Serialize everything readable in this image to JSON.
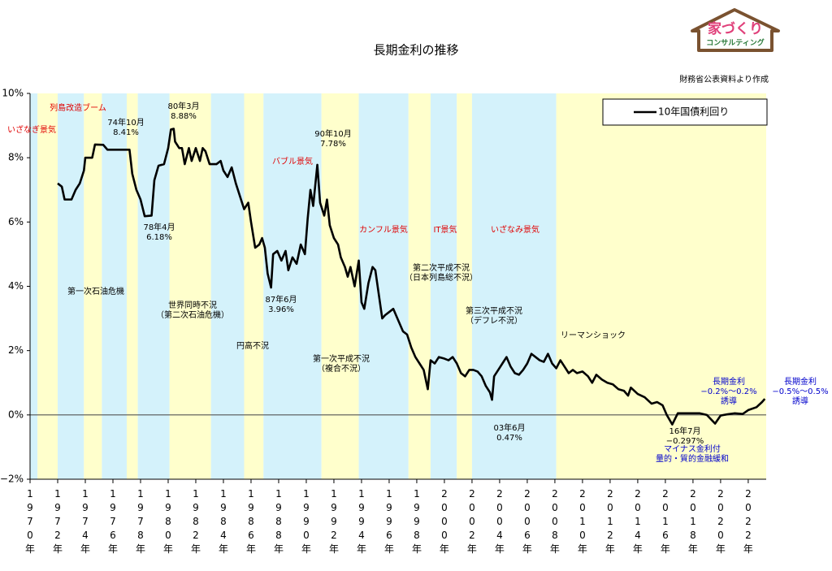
{
  "chart_data": {
    "type": "line",
    "title": "長期金利の推移",
    "source": "財務省公表資料より作成",
    "logo": {
      "main": "家づくり",
      "sub": "コンサルティング"
    },
    "legend": "upper right",
    "xlim": [
      1970,
      2023.3
    ],
    "ylim": [
      -2,
      10
    ],
    "yticks": [
      {
        "value": -2,
        "label": "−2%"
      },
      {
        "value": 0,
        "label": "0%"
      },
      {
        "value": 2,
        "label": "2%"
      },
      {
        "value": 4,
        "label": "4%"
      },
      {
        "value": 6,
        "label": "6%"
      },
      {
        "value": 8,
        "label": "8%"
      },
      {
        "value": 10,
        "label": "10%"
      }
    ],
    "xticks": [
      {
        "value": 1970,
        "label": "1970年"
      },
      {
        "value": 1972,
        "label": "1972年"
      },
      {
        "value": 1974,
        "label": "1974年"
      },
      {
        "value": 1976,
        "label": "1976年"
      },
      {
        "value": 1978,
        "label": "1978年"
      },
      {
        "value": 1980,
        "label": "1980年"
      },
      {
        "value": 1982,
        "label": "1982年"
      },
      {
        "value": 1984,
        "label": "1984年"
      },
      {
        "value": 1986,
        "label": "1986年"
      },
      {
        "value": 1988,
        "label": "1988年"
      },
      {
        "value": 1990,
        "label": "1990年"
      },
      {
        "value": 1992,
        "label": "1992年"
      },
      {
        "value": 1994,
        "label": "1994年"
      },
      {
        "value": 1996,
        "label": "1996年"
      },
      {
        "value": 1998,
        "label": "1998年"
      },
      {
        "value": 2000,
        "label": "2000年"
      },
      {
        "value": 2002,
        "label": "2002年"
      },
      {
        "value": 2004,
        "label": "2004年"
      },
      {
        "value": 2006,
        "label": "2006年"
      },
      {
        "value": 2008,
        "label": "2008年"
      },
      {
        "value": 2010,
        "label": "2010年"
      },
      {
        "value": 2012,
        "label": "2012年"
      },
      {
        "value": 2014,
        "label": "2014年"
      },
      {
        "value": 2016,
        "label": "2016年"
      },
      {
        "value": 2018,
        "label": "2018年"
      },
      {
        "value": 2020,
        "label": "2020年"
      },
      {
        "value": 2022,
        "label": "2022年"
      }
    ],
    "bands": [
      {
        "from": 1970,
        "to": 1970.54,
        "color": "#d4f2fb"
      },
      {
        "from": 1970.54,
        "to": 1972.0,
        "color": "#ffffcc"
      },
      {
        "from": 1972.0,
        "to": 1973.9,
        "color": "#d4f2fb"
      },
      {
        "from": 1973.9,
        "to": 1975.2,
        "color": "#ffffcc"
      },
      {
        "from": 1975.2,
        "to": 1977.0,
        "color": "#d4f2fb"
      },
      {
        "from": 1977.0,
        "to": 1977.8,
        "color": "#ffffcc"
      },
      {
        "from": 1977.8,
        "to": 1980.1,
        "color": "#d4f2fb"
      },
      {
        "from": 1980.1,
        "to": 1983.1,
        "color": "#ffffcc"
      },
      {
        "from": 1983.1,
        "to": 1985.5,
        "color": "#d4f2fb"
      },
      {
        "from": 1985.5,
        "to": 1986.9,
        "color": "#ffffcc"
      },
      {
        "from": 1986.9,
        "to": 1991.1,
        "color": "#d4f2fb"
      },
      {
        "from": 1991.1,
        "to": 1993.8,
        "color": "#ffffcc"
      },
      {
        "from": 1993.8,
        "to": 1997.4,
        "color": "#d4f2fb"
      },
      {
        "from": 1997.4,
        "to": 1999.0,
        "color": "#ffffcc"
      },
      {
        "from": 1999.0,
        "to": 2000.9,
        "color": "#d4f2fb"
      },
      {
        "from": 2000.9,
        "to": 2002.0,
        "color": "#ffffcc"
      },
      {
        "from": 2002.0,
        "to": 2008.1,
        "color": "#d4f2fb"
      },
      {
        "from": 2008.1,
        "to": 2023.3,
        "color": "#ffffcc"
      }
    ],
    "x": [
      1972.0,
      1972.3,
      1972.5,
      1973.0,
      1973.3,
      1973.6,
      1973.9,
      1974.0,
      1974.5,
      1974.7,
      1975.3,
      1975.6,
      1976.5,
      1977.2,
      1977.4,
      1977.7,
      1978.0,
      1978.3,
      1978.8,
      1979.0,
      1979.3,
      1979.7,
      1980.0,
      1980.2,
      1980.4,
      1980.5,
      1980.8,
      1981.0,
      1981.2,
      1981.5,
      1981.7,
      1982.0,
      1982.3,
      1982.5,
      1982.7,
      1983.0,
      1983.5,
      1983.8,
      1984.0,
      1984.3,
      1984.6,
      1984.9,
      1985.2,
      1985.5,
      1985.8,
      1986.0,
      1986.3,
      1986.6,
      1986.8,
      1987.0,
      1987.2,
      1987.45,
      1987.6,
      1987.9,
      1988.2,
      1988.5,
      1988.7,
      1989.0,
      1989.3,
      1989.6,
      1989.9,
      1990.1,
      1990.3,
      1990.5,
      1990.8,
      1991.0,
      1991.3,
      1991.5,
      1991.7,
      1992.0,
      1992.3,
      1992.5,
      1992.8,
      1993.0,
      1993.2,
      1993.5,
      1993.8,
      1994.0,
      1994.2,
      1994.5,
      1994.8,
      1995.0,
      1995.3,
      1995.5,
      1995.7,
      1996.0,
      1996.3,
      1996.6,
      1997.0,
      1997.3,
      1997.6,
      1997.9,
      1998.2,
      1998.5,
      1998.8,
      1999.0,
      1999.3,
      1999.6,
      2000.0,
      2000.3,
      2000.6,
      2000.9,
      2001.2,
      2001.5,
      2001.8,
      2002.1,
      2002.4,
      2002.7,
      2003.0,
      2003.3,
      2003.45,
      2003.6,
      2003.9,
      2004.2,
      2004.5,
      2004.8,
      2005.1,
      2005.4,
      2005.7,
      2006.0,
      2006.3,
      2006.6,
      2006.9,
      2007.2,
      2007.5,
      2007.8,
      2008.1,
      2008.4,
      2008.7,
      2009.0,
      2009.3,
      2009.6,
      2010.0,
      2010.4,
      2010.7,
      2011.0,
      2011.4,
      2011.8,
      2012.2,
      2012.6,
      2013.0,
      2013.3,
      2013.5,
      2014.0,
      2014.5,
      2015.0,
      2015.4,
      2015.8,
      2016.1,
      2016.5,
      2016.9,
      2017.5,
      2018.0,
      2018.5,
      2019.0,
      2019.6,
      2020.0,
      2020.5,
      2021.0,
      2021.6,
      2022.0,
      2022.6,
      2023.0,
      2023.2
    ],
    "series": [
      {
        "name": "10年国債利回り",
        "color": "#000000",
        "values": [
          7.2,
          7.1,
          6.7,
          6.7,
          7.0,
          7.2,
          7.6,
          8.0,
          8.0,
          8.41,
          8.4,
          8.25,
          8.25,
          8.25,
          7.5,
          7.0,
          6.7,
          6.18,
          6.2,
          7.3,
          7.75,
          7.8,
          8.3,
          8.88,
          8.9,
          8.5,
          8.3,
          8.3,
          7.8,
          8.3,
          7.9,
          8.3,
          7.9,
          8.3,
          8.2,
          7.8,
          7.8,
          7.9,
          7.6,
          7.4,
          7.7,
          7.2,
          6.8,
          6.4,
          6.6,
          6.0,
          5.2,
          5.3,
          5.5,
          5.2,
          4.4,
          3.96,
          5.0,
          5.1,
          4.8,
          5.1,
          4.5,
          4.9,
          4.7,
          5.3,
          5.0,
          6.1,
          7.0,
          6.5,
          7.78,
          6.6,
          6.2,
          6.7,
          5.9,
          5.5,
          5.3,
          4.9,
          4.6,
          4.3,
          4.6,
          4.0,
          4.8,
          3.5,
          3.3,
          4.1,
          4.6,
          4.5,
          3.6,
          3.0,
          3.1,
          3.2,
          3.3,
          3.0,
          2.6,
          2.5,
          2.1,
          1.8,
          1.6,
          1.4,
          0.8,
          1.7,
          1.6,
          1.8,
          1.75,
          1.7,
          1.8,
          1.6,
          1.3,
          1.2,
          1.4,
          1.4,
          1.35,
          1.2,
          0.9,
          0.7,
          0.47,
          1.2,
          1.4,
          1.6,
          1.8,
          1.5,
          1.3,
          1.25,
          1.4,
          1.6,
          1.9,
          1.8,
          1.7,
          1.65,
          1.9,
          1.6,
          1.45,
          1.7,
          1.5,
          1.3,
          1.4,
          1.3,
          1.35,
          1.2,
          1.0,
          1.25,
          1.1,
          1.0,
          0.95,
          0.8,
          0.75,
          0.6,
          0.85,
          0.65,
          0.55,
          0.35,
          0.4,
          0.3,
          0.0,
          -0.297,
          0.05,
          0.05,
          0.05,
          0.05,
          0.0,
          -0.27,
          -0.02,
          0.02,
          0.05,
          0.03,
          0.15,
          0.24,
          0.4,
          0.5
        ]
      }
    ],
    "annotations": [
      {
        "lines": [
          "いざなぎ景気"
        ],
        "color": "#e00000"
      },
      {
        "lines": [
          "列島改造ブーム"
        ],
        "color": "#e00000"
      },
      {
        "lines": [
          "74年10月",
          "8.41%"
        ],
        "color": "#000000"
      },
      {
        "lines": [
          "80年3月",
          "8.88%"
        ],
        "color": "#000000"
      },
      {
        "lines": [
          "78年4月",
          "6.18%"
        ],
        "color": "#000000"
      },
      {
        "lines": [
          "90年10月",
          "7.78%"
        ],
        "color": "#000000"
      },
      {
        "lines": [
          "バブル景気"
        ],
        "color": "#e00000"
      },
      {
        "lines": [
          "87年6月",
          "3.96%"
        ],
        "color": "#000000"
      },
      {
        "lines": [
          "カンフル景気"
        ],
        "color": "#e00000"
      },
      {
        "lines": [
          "IT景気"
        ],
        "color": "#e00000"
      },
      {
        "lines": [
          "いざなみ景気"
        ],
        "color": "#e00000"
      },
      {
        "lines": [
          "第一次石油危機"
        ],
        "color": "#000000"
      },
      {
        "lines": [
          "世界同時不況",
          "（第二次石油危機）"
        ],
        "color": "#000000"
      },
      {
        "lines": [
          "円高不況"
        ],
        "color": "#000000"
      },
      {
        "lines": [
          "第一次平成不況",
          "（複合不況）"
        ],
        "color": "#000000"
      },
      {
        "lines": [
          "第二次平成不況",
          "（日本列島総不況）"
        ],
        "color": "#000000"
      },
      {
        "lines": [
          "第三次平成不況",
          "（デフレ不況）"
        ],
        "color": "#000000"
      },
      {
        "lines": [
          "リーマンショック"
        ],
        "color": "#000000"
      },
      {
        "lines": [
          "03年6月",
          "0.47%"
        ],
        "color": "#000000"
      },
      {
        "lines": [
          "16年7月",
          "−0.297%"
        ],
        "color": "#000000"
      },
      {
        "lines": [
          "マイナス金利付",
          "量的・質的金融緩和"
        ],
        "color": "#0000cc"
      },
      {
        "lines": [
          "長期金利",
          "−0.2%〜0.2%",
          "誘導"
        ],
        "color": "#0000cc"
      },
      {
        "lines": [
          "長期金利",
          "−0.5%〜0.5%",
          "誘導"
        ],
        "color": "#0000cc"
      }
    ]
  }
}
